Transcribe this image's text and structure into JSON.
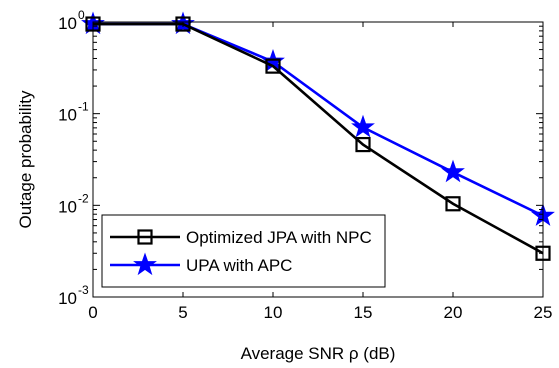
{
  "chart_data": {
    "type": "line",
    "title": "",
    "xlabel": "Average SNR ρ (dB)",
    "ylabel": "Outage probability",
    "xlim": [
      0,
      25
    ],
    "ylim": [
      0.001,
      1
    ],
    "y_scale": "log",
    "grid": false,
    "legend_position": "bottom-left",
    "x_ticks": [
      "0",
      "5",
      "10",
      "15",
      "20",
      "25"
    ],
    "y_ticks": [
      {
        "base": "10",
        "exp": "-3"
      },
      {
        "base": "10",
        "exp": "-2"
      },
      {
        "base": "10",
        "exp": "-1"
      },
      {
        "base": "10",
        "exp": "0"
      }
    ],
    "x": [
      0,
      5,
      10,
      15,
      20,
      25
    ],
    "series": [
      {
        "name": "Optimized JPA with NPC",
        "values": [
          0.95,
          0.95,
          0.33,
          0.046,
          0.0104,
          0.003
        ],
        "color": "#000000",
        "marker": "square"
      },
      {
        "name": "UPA with APC",
        "values": [
          0.95,
          0.95,
          0.37,
          0.071,
          0.023,
          0.0077
        ],
        "color": "#0000ff",
        "marker": "star"
      }
    ]
  }
}
